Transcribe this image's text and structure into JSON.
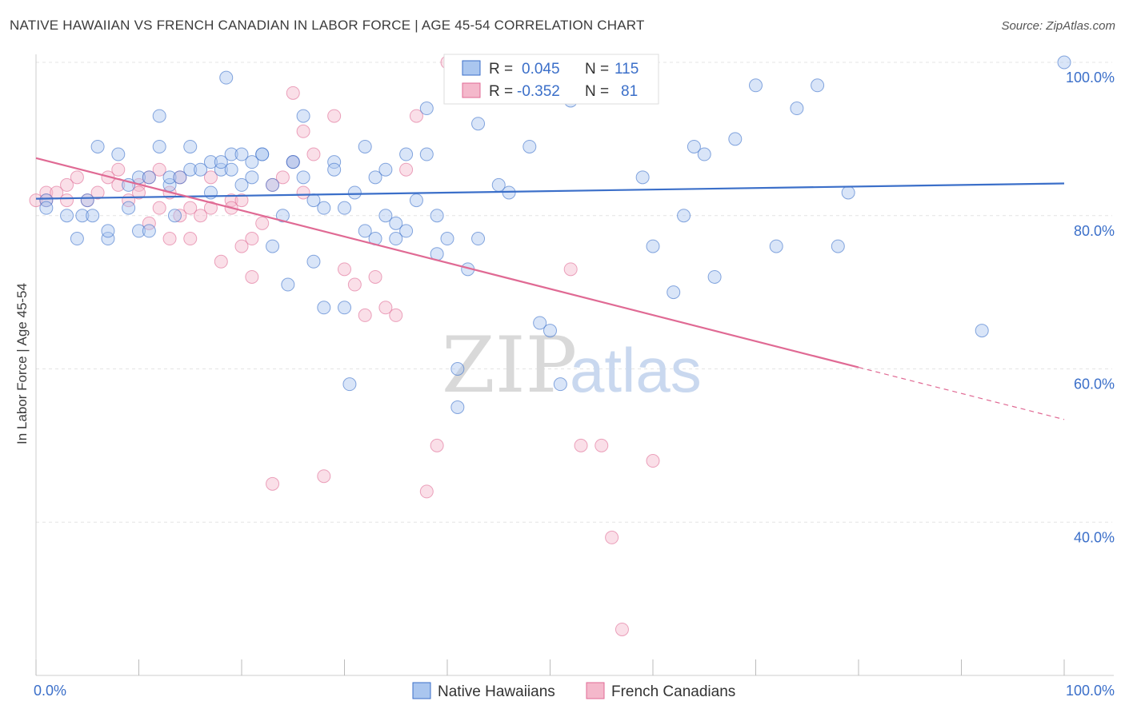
{
  "title": "NATIVE HAWAIIAN VS FRENCH CANADIAN IN LABOR FORCE | AGE 45-54 CORRELATION CHART",
  "source": "Source: ZipAtlas.com",
  "watermark": {
    "zip": "ZIP",
    "atlas": "atlas"
  },
  "colors": {
    "blue": "#3b6fc9",
    "blue_fill": "#aac6ef",
    "pink": "#e06a94",
    "pink_fill": "#f4b8cb",
    "grid": "#e4e4e4"
  },
  "legend_top": {
    "rows": [
      {
        "r_label": "R =",
        "r_value": "0.045",
        "n_label": "N =",
        "n_value": "115"
      },
      {
        "r_label": "R =",
        "r_value": "-0.352",
        "n_label": "N =",
        "n_value": "81"
      }
    ]
  },
  "chart_data": {
    "type": "scatter",
    "ylabel": "In Labor Force | Age 45-54",
    "xlim": [
      0,
      100
    ],
    "ylim": [
      20,
      100
    ],
    "y_ticks": [
      "100.0%",
      "80.0%",
      "60.0%",
      "40.0%"
    ],
    "y_tick_values": [
      100,
      80,
      60,
      40
    ],
    "x_tick_labels": [
      "0.0%",
      "100.0%"
    ],
    "grid": true,
    "legend": "bottom",
    "series": [
      {
        "name": "Native Hawaiians",
        "r": 0.045,
        "n": 115,
        "trend": {
          "x0": 0,
          "y0": 82.2,
          "x1": 100,
          "y1": 84.2
        },
        "points": [
          [
            1,
            82
          ],
          [
            1,
            81
          ],
          [
            3,
            80
          ],
          [
            4,
            77
          ],
          [
            5,
            82
          ],
          [
            4.5,
            80
          ],
          [
            5.5,
            80
          ],
          [
            6,
            89
          ],
          [
            7,
            77
          ],
          [
            7,
            78
          ],
          [
            8,
            88
          ],
          [
            9,
            84
          ],
          [
            9,
            81
          ],
          [
            10,
            85
          ],
          [
            10,
            78
          ],
          [
            11,
            78
          ],
          [
            11,
            85
          ],
          [
            12,
            93
          ],
          [
            12,
            89
          ],
          [
            13,
            84
          ],
          [
            13,
            85
          ],
          [
            13.5,
            80
          ],
          [
            14,
            85
          ],
          [
            15,
            89
          ],
          [
            15,
            86
          ],
          [
            16,
            86
          ],
          [
            17,
            87
          ],
          [
            17,
            83
          ],
          [
            18,
            86
          ],
          [
            18,
            87
          ],
          [
            18.5,
            98
          ],
          [
            19,
            86
          ],
          [
            19,
            88
          ],
          [
            20,
            88
          ],
          [
            20,
            84
          ],
          [
            21,
            87
          ],
          [
            21,
            85
          ],
          [
            22,
            88
          ],
          [
            22,
            88
          ],
          [
            23,
            76
          ],
          [
            23,
            84
          ],
          [
            24,
            80
          ],
          [
            24.5,
            71
          ],
          [
            25,
            87
          ],
          [
            25,
            87
          ],
          [
            26,
            93
          ],
          [
            26,
            85
          ],
          [
            27,
            82
          ],
          [
            27,
            74
          ],
          [
            28,
            81
          ],
          [
            28,
            68
          ],
          [
            29,
            87
          ],
          [
            29,
            86
          ],
          [
            30,
            81
          ],
          [
            30,
            68
          ],
          [
            30.5,
            58
          ],
          [
            31,
            83
          ],
          [
            32,
            78
          ],
          [
            32,
            89
          ],
          [
            33,
            77
          ],
          [
            33,
            85
          ],
          [
            34,
            80
          ],
          [
            34,
            86
          ],
          [
            35,
            77
          ],
          [
            35,
            79
          ],
          [
            36,
            78
          ],
          [
            36,
            88
          ],
          [
            37,
            82
          ],
          [
            38,
            88
          ],
          [
            38,
            94
          ],
          [
            39,
            80
          ],
          [
            39,
            75
          ],
          [
            40,
            77
          ],
          [
            41,
            55
          ],
          [
            41,
            60
          ],
          [
            42,
            73
          ],
          [
            43,
            77
          ],
          [
            43,
            92
          ],
          [
            44,
            100
          ],
          [
            45,
            84
          ],
          [
            46,
            83
          ],
          [
            47,
            100
          ],
          [
            48,
            89
          ],
          [
            49,
            66
          ],
          [
            50,
            65
          ],
          [
            51,
            58
          ],
          [
            52,
            95
          ],
          [
            53,
            100
          ],
          [
            54,
            100
          ],
          [
            55,
            100
          ],
          [
            56,
            100
          ],
          [
            57,
            100
          ],
          [
            58,
            100
          ],
          [
            59,
            85
          ],
          [
            60,
            76
          ],
          [
            62,
            70
          ],
          [
            63,
            80
          ],
          [
            64,
            89
          ],
          [
            65,
            88
          ],
          [
            66,
            72
          ],
          [
            68,
            90
          ],
          [
            70,
            97
          ],
          [
            72,
            76
          ],
          [
            74,
            94
          ],
          [
            76,
            97
          ],
          [
            78,
            76
          ],
          [
            79,
            83
          ],
          [
            92,
            65
          ],
          [
            100,
            100
          ]
        ]
      },
      {
        "name": "French Canadians",
        "r": -0.352,
        "n": 81,
        "trend": {
          "x0": 0,
          "y0": 87.5,
          "x1": 80,
          "y1": 60.2,
          "dash_x1": 100,
          "dash_y1": 53.4
        },
        "points": [
          [
            0,
            82
          ],
          [
            1,
            82
          ],
          [
            1,
            83
          ],
          [
            2,
            83
          ],
          [
            3,
            82
          ],
          [
            3,
            84
          ],
          [
            4,
            85
          ],
          [
            5,
            82
          ],
          [
            6,
            83
          ],
          [
            7,
            85
          ],
          [
            8,
            86
          ],
          [
            8,
            84
          ],
          [
            9,
            82
          ],
          [
            10,
            84
          ],
          [
            10,
            83
          ],
          [
            11,
            85
          ],
          [
            11,
            79
          ],
          [
            12,
            81
          ],
          [
            12,
            86
          ],
          [
            13,
            83
          ],
          [
            13,
            77
          ],
          [
            14,
            85
          ],
          [
            14,
            80
          ],
          [
            15,
            81
          ],
          [
            15,
            77
          ],
          [
            16,
            80
          ],
          [
            17,
            81
          ],
          [
            17,
            85
          ],
          [
            18,
            74
          ],
          [
            19,
            82
          ],
          [
            19,
            81
          ],
          [
            20,
            82
          ],
          [
            20,
            76
          ],
          [
            21,
            77
          ],
          [
            21,
            72
          ],
          [
            22,
            79
          ],
          [
            23,
            84
          ],
          [
            23,
            45
          ],
          [
            24,
            85
          ],
          [
            25,
            96
          ],
          [
            25,
            87
          ],
          [
            26,
            91
          ],
          [
            26,
            83
          ],
          [
            27,
            88
          ],
          [
            28,
            46
          ],
          [
            29,
            93
          ],
          [
            30,
            73
          ],
          [
            31,
            71
          ],
          [
            32,
            67
          ],
          [
            33,
            72
          ],
          [
            34,
            68
          ],
          [
            35,
            67
          ],
          [
            36,
            86
          ],
          [
            37,
            93
          ],
          [
            38,
            44
          ],
          [
            39,
            50
          ],
          [
            40,
            100
          ],
          [
            41,
            100
          ],
          [
            42,
            100
          ],
          [
            43,
            100
          ],
          [
            44,
            100
          ],
          [
            45,
            100
          ],
          [
            46,
            100
          ],
          [
            47,
            100
          ],
          [
            48,
            100
          ],
          [
            49,
            100
          ],
          [
            50,
            100
          ],
          [
            51,
            100
          ],
          [
            52,
            73
          ],
          [
            53,
            50
          ],
          [
            55,
            50
          ],
          [
            56,
            38
          ],
          [
            57,
            26
          ],
          [
            60,
            48
          ]
        ]
      }
    ]
  }
}
